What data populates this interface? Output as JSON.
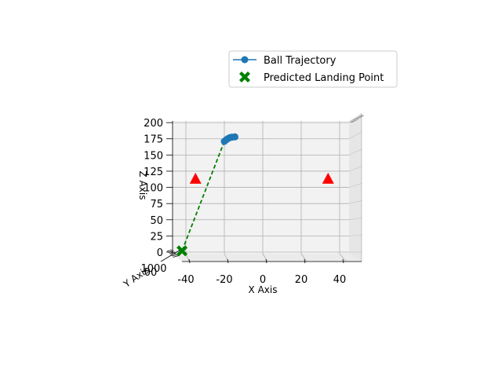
{
  "chart_data": {
    "type": "scatter",
    "projection": "3d",
    "xlabel": "X Axis",
    "ylabel": "Y Axis",
    "zlabel": "Z Axis",
    "xlim": [
      -48,
      52
    ],
    "zlim": [
      0,
      205
    ],
    "x_ticks": [
      -40,
      -20,
      0,
      20,
      40
    ],
    "z_ticks": [
      0,
      25,
      50,
      75,
      100,
      125,
      150,
      175,
      200
    ],
    "y_ticks_visible_text": "1000",
    "grid": true,
    "legend_position": "top-right",
    "series": [
      {
        "name": "Ball Trajectory",
        "kind": "line-marker",
        "color": "#1f77b4",
        "x": [
          -20,
          -19,
          -18,
          -17,
          -16,
          -14.5
        ],
        "z": [
          171,
          173.5,
          175.5,
          177,
          177.5,
          178
        ]
      },
      {
        "name": "Predicted Landing Point",
        "kind": "marker-x",
        "color": "#008000",
        "x": [
          -42
        ],
        "z": [
          2
        ]
      }
    ],
    "extra_marks": [
      {
        "kind": "dashed-line",
        "color": "#008000",
        "from": {
          "x": -20,
          "z": 171
        },
        "to": {
          "x": -42,
          "z": 2
        }
      },
      {
        "kind": "triangle",
        "color": "#ff0000",
        "x": -35,
        "z": 113
      },
      {
        "kind": "triangle",
        "color": "#ff0000",
        "x": 34,
        "z": 113
      }
    ]
  }
}
